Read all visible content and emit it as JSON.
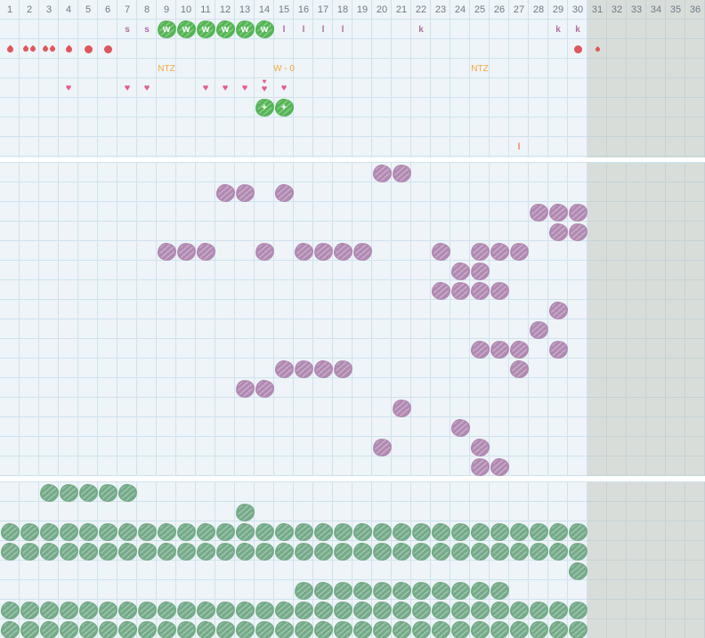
{
  "colors": {
    "cell_bg": "#eef4f7",
    "grid_line": "#cfe2ee",
    "gray_zone": "rgba(186,188,178,0.42)",
    "header_text": "#6e7b86",
    "green_marker": "#53b553",
    "purple_marker": "#b089b2",
    "sage_marker": "#74aa88",
    "red_bleeding": "#e1555b",
    "pink_heart": "#e75a8c",
    "mauve_letter": "#ad6fa0",
    "orange_note": "#f2a83e",
    "coral_letter": "#ef8457"
  },
  "header": {
    "days": [
      "1",
      "2",
      "3",
      "4",
      "5",
      "6",
      "7",
      "8",
      "9",
      "10",
      "11",
      "12",
      "13",
      "14",
      "15",
      "16",
      "17",
      "18",
      "19",
      "20",
      "21",
      "22",
      "23",
      "24",
      "25",
      "26",
      "27",
      "28",
      "29",
      "30",
      "31",
      "32",
      "33",
      "34",
      "35",
      "36"
    ]
  },
  "glyphs": {
    "heart": "♥"
  },
  "top_section": {
    "rows": [
      {
        "name": "observation-codes",
        "items": [
          {
            "col": 7,
            "kind": "letter",
            "text": "s"
          },
          {
            "col": 8,
            "kind": "letter",
            "text": "s"
          },
          {
            "col": 9,
            "kind": "blob-w",
            "text": "w"
          },
          {
            "col": 10,
            "kind": "blob-w",
            "text": "w"
          },
          {
            "col": 11,
            "kind": "blob-w",
            "text": "w"
          },
          {
            "col": 12,
            "kind": "blob-w",
            "text": "w"
          },
          {
            "col": 13,
            "kind": "blob-w",
            "text": "w"
          },
          {
            "col": 14,
            "kind": "blob-w",
            "text": "w"
          },
          {
            "col": 15,
            "kind": "letter",
            "text": "l"
          },
          {
            "col": 16,
            "kind": "letter",
            "text": "l"
          },
          {
            "col": 17,
            "kind": "letter",
            "text": "l"
          },
          {
            "col": 18,
            "kind": "letter",
            "text": "l"
          },
          {
            "col": 22,
            "kind": "letter",
            "text": "k"
          },
          {
            "col": 29,
            "kind": "letter",
            "text": "k"
          },
          {
            "col": 30,
            "kind": "letter",
            "text": "k"
          }
        ]
      },
      {
        "name": "bleeding",
        "items": [
          {
            "col": 1,
            "kind": "droplet"
          },
          {
            "col": 2,
            "kind": "droplet2"
          },
          {
            "col": 3,
            "kind": "droplet2"
          },
          {
            "col": 4,
            "kind": "droplet"
          },
          {
            "col": 5,
            "kind": "circle"
          },
          {
            "col": 6,
            "kind": "circle"
          },
          {
            "col": 30,
            "kind": "circle"
          },
          {
            "col": 31,
            "kind": "droplet-small"
          }
        ]
      },
      {
        "name": "notes",
        "items": [
          {
            "col": 9,
            "kind": "note",
            "text": "NTZ"
          },
          {
            "col": 15,
            "kind": "note",
            "text": "W - 0"
          },
          {
            "col": 25,
            "kind": "note",
            "text": "NTZ"
          }
        ]
      },
      {
        "name": "hearts",
        "items": [
          {
            "col": 4,
            "kind": "heart"
          },
          {
            "col": 7,
            "kind": "heart"
          },
          {
            "col": 8,
            "kind": "heart"
          },
          {
            "col": 11,
            "kind": "heart"
          },
          {
            "col": 12,
            "kind": "heart"
          },
          {
            "col": 13,
            "kind": "heart"
          },
          {
            "col": 14,
            "kind": "heart2"
          },
          {
            "col": 15,
            "kind": "heart"
          }
        ]
      },
      {
        "name": "plus-markers",
        "items": [
          {
            "col": 14,
            "kind": "blob-plus",
            "text": "+"
          },
          {
            "col": 15,
            "kind": "blob-plus",
            "text": "+"
          }
        ]
      },
      {
        "name": "empty-row",
        "items": []
      },
      {
        "name": "extra-codes",
        "items": [
          {
            "col": 27,
            "kind": "letter-orange",
            "text": "l"
          }
        ]
      }
    ]
  },
  "middle_section": {
    "rows": [
      {
        "cols": [
          20,
          21
        ]
      },
      {
        "cols": [
          12,
          13,
          15
        ]
      },
      {
        "cols": [
          28,
          29,
          30
        ]
      },
      {
        "cols": [
          29,
          30
        ]
      },
      {
        "cols": [
          9,
          10,
          11,
          14,
          16,
          17,
          18,
          19,
          23,
          25,
          26,
          27
        ]
      },
      {
        "cols": [
          24,
          25
        ]
      },
      {
        "cols": [
          23,
          24,
          25,
          26
        ]
      },
      {
        "cols": [
          29
        ]
      },
      {
        "cols": [
          28
        ]
      },
      {
        "cols": [
          25,
          26,
          27,
          29
        ]
      },
      {
        "cols": [
          15,
          16,
          17,
          18,
          27
        ]
      },
      {
        "cols": [
          13,
          14
        ]
      },
      {
        "cols": [
          21
        ]
      },
      {
        "cols": [
          24
        ]
      },
      {
        "cols": [
          20,
          25
        ]
      },
      {
        "cols": [
          25,
          26
        ]
      }
    ]
  },
  "bottom_section": {
    "rows": [
      {
        "cols": [
          3,
          4,
          5,
          6,
          7
        ]
      },
      {
        "cols": [
          13
        ]
      },
      {
        "cols": [
          1,
          2,
          3,
          4,
          5,
          6,
          7,
          8,
          9,
          10,
          11,
          12,
          13,
          14,
          15,
          16,
          17,
          18,
          19,
          20,
          21,
          22,
          23,
          24,
          25,
          26,
          27,
          28,
          29,
          30
        ]
      },
      {
        "cols": [
          1,
          2,
          3,
          4,
          5,
          6,
          7,
          8,
          9,
          10,
          11,
          12,
          13,
          14,
          15,
          16,
          17,
          18,
          19,
          20,
          21,
          22,
          23,
          24,
          25,
          26,
          27,
          28,
          29,
          30
        ]
      },
      {
        "cols": [
          30
        ]
      },
      {
        "cols": [
          16,
          17,
          18,
          19,
          20,
          21,
          22,
          23,
          24,
          25,
          26
        ]
      },
      {
        "cols": [
          1,
          2,
          3,
          4,
          5,
          6,
          7,
          8,
          9,
          10,
          11,
          12,
          13,
          14,
          15,
          16,
          17,
          18,
          19,
          20,
          21,
          22,
          23,
          24,
          25,
          26,
          27,
          28,
          29,
          30
        ]
      },
      {
        "cols": [
          1,
          2,
          3,
          4,
          5,
          6,
          7,
          8,
          9,
          10,
          11,
          12,
          13,
          14,
          15,
          16,
          17,
          18,
          19,
          20,
          21,
          22,
          23,
          24,
          25,
          26,
          27,
          28,
          29,
          30
        ]
      }
    ]
  }
}
